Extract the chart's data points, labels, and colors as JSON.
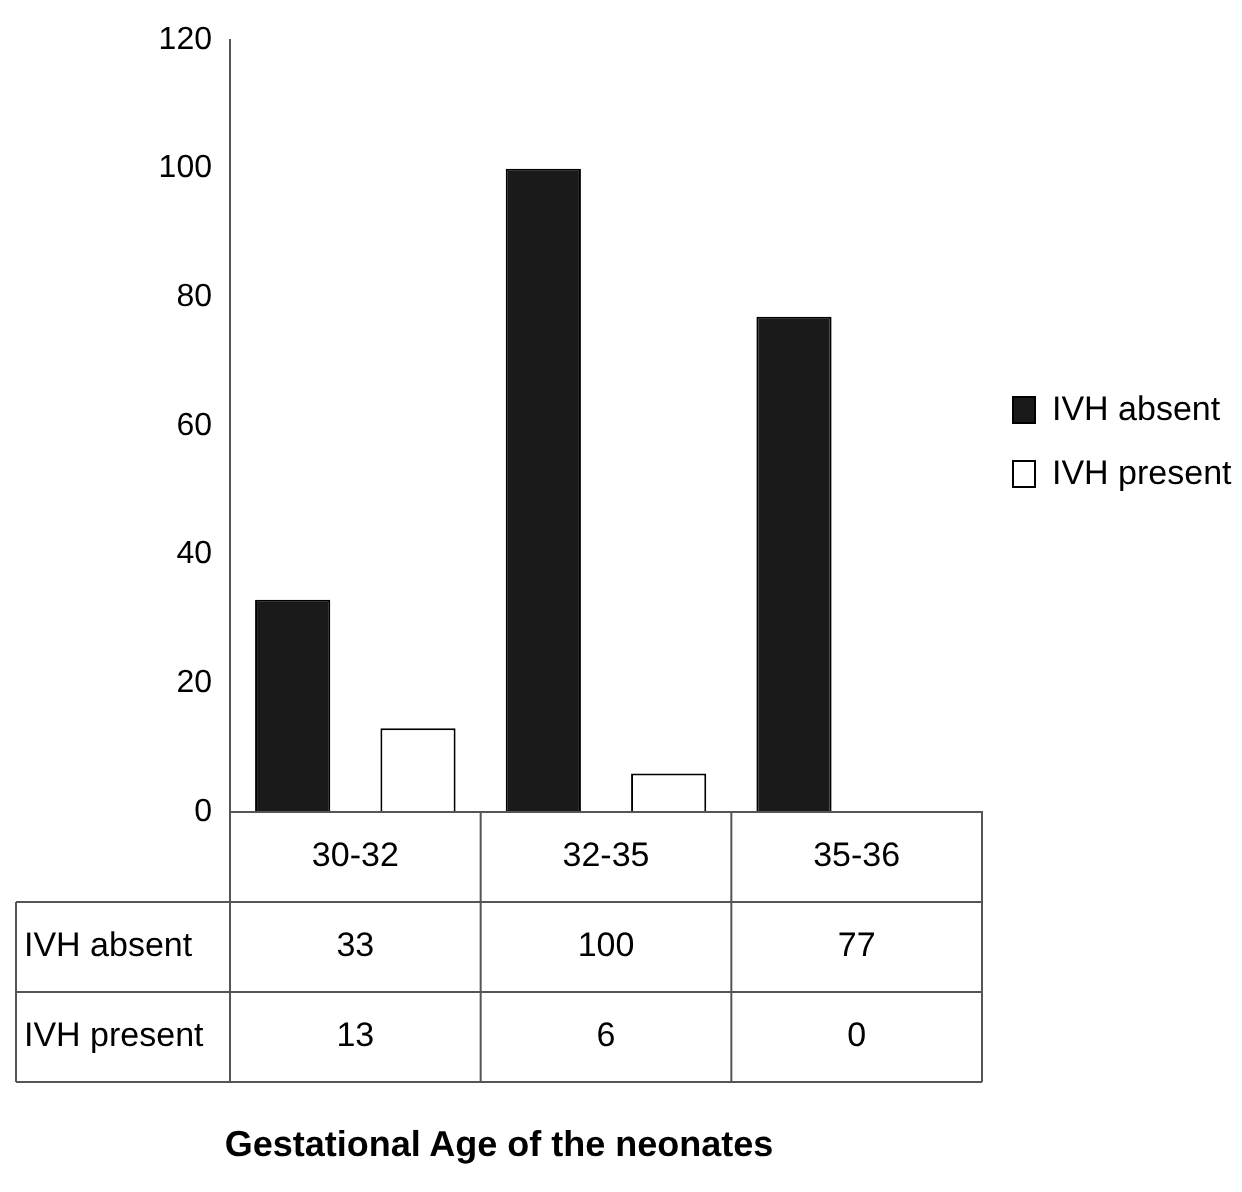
{
  "chart_data": {
    "type": "bar",
    "annotations": [
      "Gestational Age of the neonates"
    ],
    "categories": [
      "30-32",
      "32-35",
      "35-36"
    ],
    "series": [
      {
        "name": "IVH absent",
        "color": "#1a1a1a",
        "values": [
          33,
          100,
          77
        ]
      },
      {
        "name": "IVH present",
        "color": "#ffffff",
        "values": [
          13,
          6,
          0
        ]
      }
    ],
    "ylim": [
      0,
      120
    ],
    "yticks": [
      0,
      20,
      40,
      60,
      80,
      100,
      120
    ],
    "grid": false,
    "legend": "right",
    "data_labels": true
  }
}
